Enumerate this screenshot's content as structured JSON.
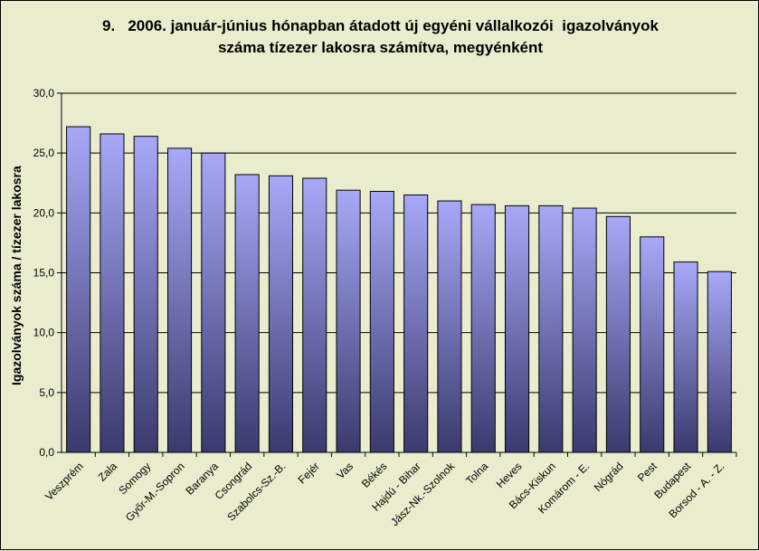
{
  "title": {
    "line1": "9.   2006. január-június hónapban átadott új egyéni vállalkozói  igazolványok",
    "line2": "száma tízezer lakosra számítva, megyénként"
  },
  "chart_data": {
    "type": "bar",
    "title": "9.   2006. január-június hónapban átadott új egyéni vállalkozói  igazolványok száma tízezer lakosra számítva, megyénként",
    "ylabel": "Igazolványok száma / tízezer lakosra",
    "xlabel": "",
    "ylim": [
      0,
      30
    ],
    "yticks": [
      "0,0",
      "5,0",
      "10,0",
      "15,0",
      "20,0",
      "25,0",
      "30,0"
    ],
    "grid": true,
    "categories": [
      "Veszprém",
      "Zala",
      "Somogy",
      "Győr-M.-Sopron",
      "Baranya",
      "Csongrád",
      "Szabolcs-Sz.-B.",
      "Fejér",
      "Vas",
      "Békés",
      "Hajdú - Bihar",
      "Jász-Nk.-Szolnok",
      "Tolna",
      "Heves",
      "Bács-Kiskun",
      "Komárom - E.",
      "Nógrád",
      "Pest",
      "Budapest",
      "Borsod - A. - Z."
    ],
    "values": [
      27.2,
      26.6,
      26.4,
      25.4,
      25.0,
      23.2,
      23.1,
      22.9,
      21.9,
      21.8,
      21.5,
      21.0,
      20.7,
      20.6,
      20.6,
      20.4,
      19.7,
      18.0,
      15.9,
      15.1
    ],
    "colors": {
      "bar_top": "#a8a8f8",
      "bar_bottom": "#3a3a6e",
      "plot_background": "#e9edce",
      "gridline": "#000000"
    }
  }
}
